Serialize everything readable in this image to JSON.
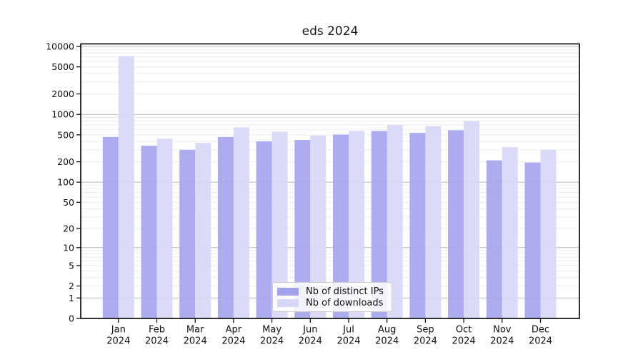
{
  "chart_data": {
    "type": "bar",
    "title": "eds 2024",
    "categories": [
      "Jan",
      "Feb",
      "Mar",
      "Apr",
      "May",
      "Jun",
      "Jul",
      "Aug",
      "Sep",
      "Oct",
      "Nov",
      "Dec"
    ],
    "category_year": "2024",
    "series": [
      {
        "name": "Nb of distinct IPs",
        "color": "#a3a3ed",
        "values": [
          465,
          345,
          300,
          465,
          400,
          420,
          505,
          570,
          535,
          585,
          210,
          195
        ]
      },
      {
        "name": "Nb of downloads",
        "color": "#d7d7f7",
        "values": [
          7200,
          440,
          380,
          645,
          555,
          490,
          570,
          700,
          670,
          800,
          330,
          300
        ]
      }
    ],
    "xlabel": "",
    "ylabel": "",
    "yscale": "log1p",
    "ylim": [
      0,
      10890
    ],
    "y_tick_values": [
      0,
      1,
      2,
      5,
      10,
      20,
      50,
      100,
      200,
      500,
      1000,
      2000,
      5000,
      10000
    ],
    "y_tick_labels": [
      "0",
      "1",
      "2",
      "5",
      "10",
      "20",
      "50",
      "100",
      "200",
      "500",
      "1000",
      "2000",
      "5000",
      "10000"
    ],
    "major_grid_values": [
      1,
      10,
      100,
      1000,
      10000
    ],
    "grid": "on",
    "legend_position": "lower center inside"
  },
  "colors": {
    "figure_bg": "#ffffff",
    "major_grid": "#b9b9b9",
    "minor_grid": "#ededed",
    "axis": "#000000",
    "tick_text": "#111111",
    "title_text": "#1a1a1a",
    "legend_border": "#cccccc",
    "legend_bg": "rgba(255,255,255,0.85)"
  }
}
